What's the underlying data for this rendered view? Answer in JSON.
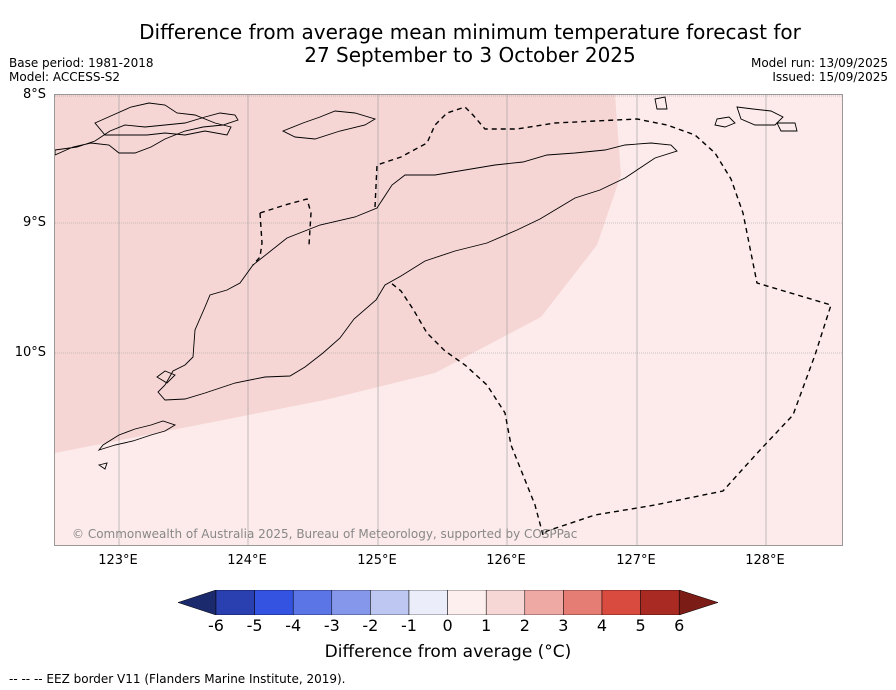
{
  "title_line1": "Difference from average mean minimum temperature forecast for",
  "title_line2": "27 September to 3 October 2025",
  "base_period": "Base period: 1981-2018",
  "model": "Model: ACCESS-S2",
  "model_run": "Model run: 13/09/2025",
  "issued": "Issued: 15/09/2025",
  "lat_labels": [
    "8°S",
    "9°S",
    "10°S"
  ],
  "lon_labels": [
    "123°E",
    "124°E",
    "125°E",
    "126°E",
    "127°E",
    "128°E"
  ],
  "copyright": "© Commonwealth of Australia 2025, Bureau of Meteorology, supported by COSPPac",
  "colorbar": {
    "ticks": [
      "-6",
      "-5",
      "-4",
      "-3",
      "-2",
      "-1",
      "0",
      "1",
      "2",
      "3",
      "4",
      "5",
      "6"
    ],
    "colors": [
      "#1a2a6c",
      "#2a3fb0",
      "#3353e0",
      "#5b74e6",
      "#8597ea",
      "#bec6f2",
      "#ebedfb",
      "#fcefee",
      "#f7d6d6",
      "#eea9a5",
      "#e57d74",
      "#d94a3f",
      "#a82a22",
      "#7b1c17"
    ],
    "label": "Difference from average (°C)"
  },
  "legend_footer": "-- --  -- EEZ border V11 (Flanders Marine Institute, 2019).",
  "fill_colors": {
    "light": "#fcebea",
    "medium": "#f6d6d5",
    "grid": "#999999"
  }
}
